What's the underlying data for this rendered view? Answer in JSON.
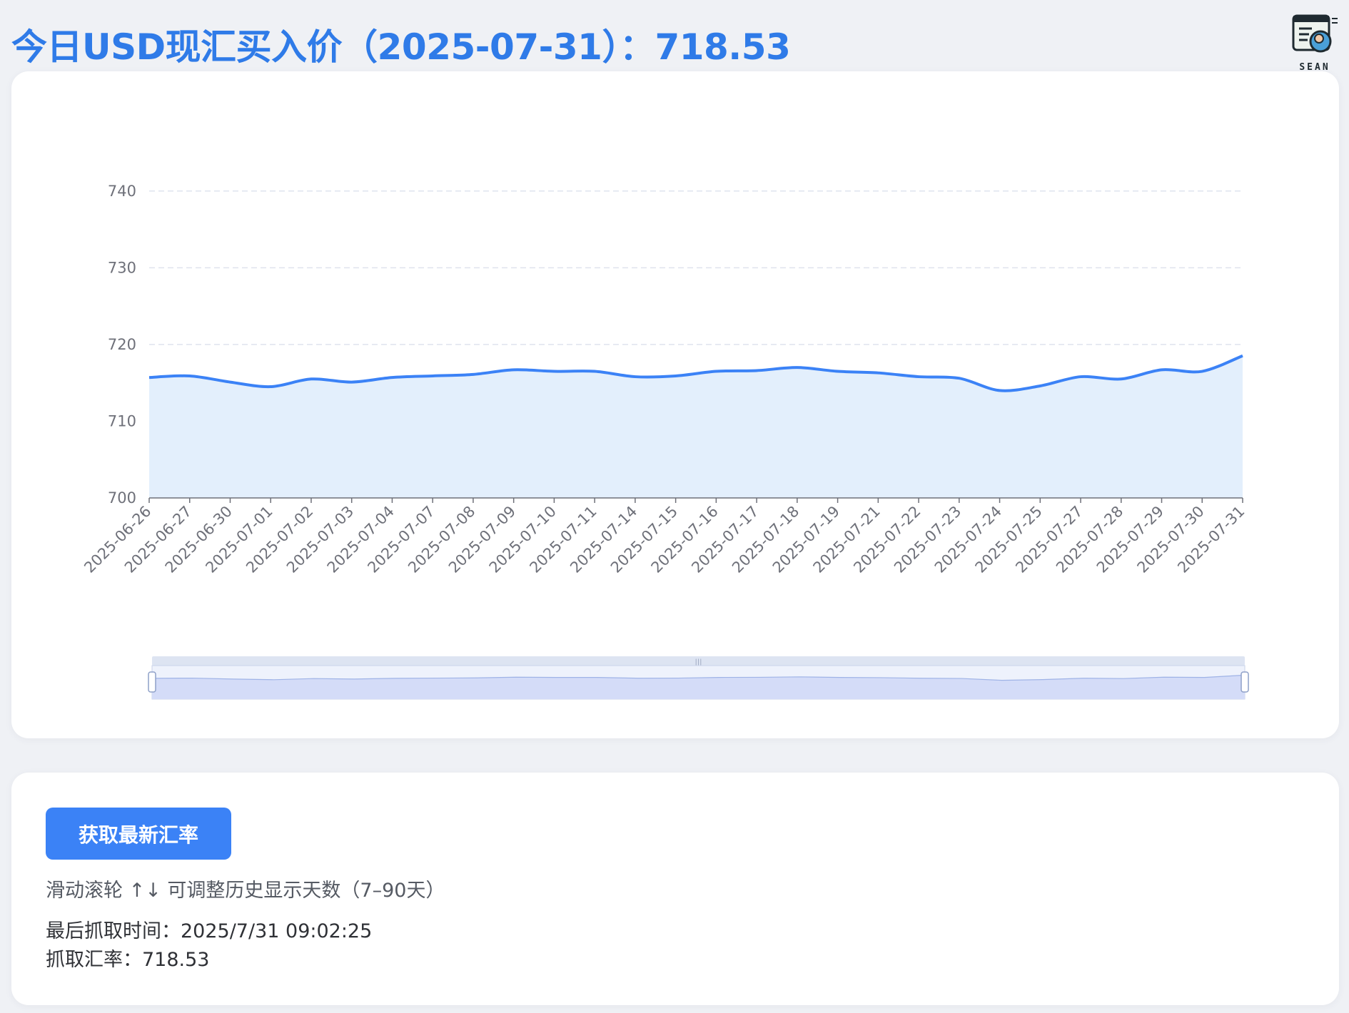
{
  "header": {
    "title": "今日USD现汇买入价（2025-07-31）：718.53",
    "logo_text": "SEAN"
  },
  "controls": {
    "fetch_button": "获取最新汇率",
    "hint": "滑动滚轮 ↑↓ 可调整历史显示天数（7–90天）",
    "last_fetch_time": "最后抓取时间：2025/7/31 09:02:25",
    "fetched_rate": "抓取汇率：718.53"
  },
  "colors": {
    "accent": "#2f7be8",
    "line": "#3b82f6",
    "area": "#e3effc",
    "grid": "#dfe3ee",
    "button": "#3b82f6"
  },
  "chart_data": {
    "type": "area",
    "title": "",
    "xlabel": "",
    "ylabel": "",
    "ylim": [
      700,
      745
    ],
    "yticks": [
      700,
      710,
      720,
      730,
      740
    ],
    "grid": true,
    "legend": "none",
    "x": [
      "2025-06-26",
      "2025-06-27",
      "2025-06-30",
      "2025-07-01",
      "2025-07-02",
      "2025-07-03",
      "2025-07-04",
      "2025-07-07",
      "2025-07-08",
      "2025-07-09",
      "2025-07-10",
      "2025-07-11",
      "2025-07-14",
      "2025-07-15",
      "2025-07-16",
      "2025-07-17",
      "2025-07-18",
      "2025-07-19",
      "2025-07-21",
      "2025-07-22",
      "2025-07-23",
      "2025-07-24",
      "2025-07-25",
      "2025-07-27",
      "2025-07-28",
      "2025-07-29",
      "2025-07-30",
      "2025-07-31"
    ],
    "series": [
      {
        "values": [
          715.7,
          715.9,
          715.1,
          714.5,
          715.5,
          715.1,
          715.7,
          715.9,
          716.1,
          716.7,
          716.5,
          716.5,
          715.8,
          715.9,
          716.5,
          716.6,
          717.0,
          716.5,
          716.3,
          715.8,
          715.6,
          714.0,
          714.6,
          715.8,
          715.5,
          716.7,
          716.5,
          718.53
        ]
      }
    ],
    "zoom_slider": {
      "start_percent": 0,
      "end_percent": 100
    }
  }
}
